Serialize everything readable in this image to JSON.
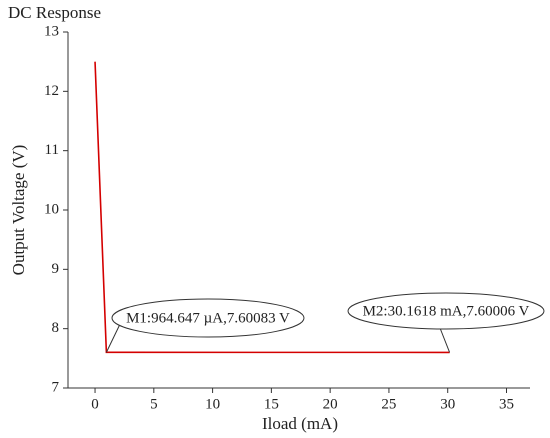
{
  "chart_data": {
    "type": "line",
    "title": "DC Response",
    "x_label": "Iload (mA)",
    "y_label": "Output Voltage (V)",
    "xlim": [
      -2.3,
      37
    ],
    "ylim": [
      7,
      13
    ],
    "xticks": [
      0,
      5,
      10,
      15,
      20,
      25,
      30,
      35
    ],
    "yticks": [
      7,
      8,
      9,
      10,
      11,
      12,
      13
    ],
    "series": [
      {
        "color": "#d40000",
        "x": [
          0,
          0.964647,
          30.1618
        ],
        "values": [
          12.5,
          7.60083,
          7.60006
        ]
      }
    ],
    "annotations": [
      "M1:964.647 µA,7.60083 V",
      "M2:30.1618 mA,7.60006 V"
    ]
  }
}
